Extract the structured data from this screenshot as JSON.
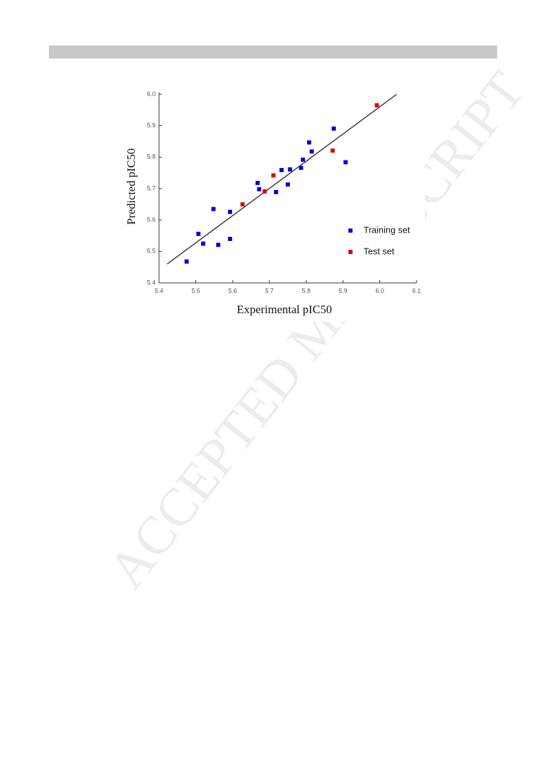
{
  "watermark": "ACCEPTED MANUSCRIPT",
  "chart_data": {
    "type": "scatter",
    "x_label": "Experimental pIC50",
    "y_label": "Predicted pIC50",
    "xlim": [
      5.4,
      6.1
    ],
    "ylim": [
      5.4,
      6.0
    ],
    "xticks": [
      5.4,
      5.5,
      5.6,
      5.7,
      5.8,
      5.9,
      {
        "value": 6,
        "label": "6.0"
      },
      6.1
    ],
    "yticks": [
      5.4,
      5.5,
      5.6,
      5.7,
      5.8,
      5.9,
      {
        "value": 6,
        "label": "6.0"
      }
    ],
    "legend": "right",
    "series": [
      {
        "name": "Training set",
        "color": "#0000dd",
        "x": [
          5.475,
          5.507,
          5.52,
          5.548,
          5.561,
          5.593,
          5.593,
          5.668,
          5.672,
          5.718,
          5.733,
          5.75,
          5.756,
          5.786,
          5.791,
          5.808,
          5.815,
          5.875,
          5.907
        ],
        "y": [
          5.468,
          5.556,
          5.525,
          5.635,
          5.521,
          5.626,
          5.54,
          5.718,
          5.698,
          5.689,
          5.759,
          5.713,
          5.761,
          5.766,
          5.792,
          5.847,
          5.818,
          5.891,
          5.784
        ]
      },
      {
        "name": "Test set",
        "color": "#dd0000",
        "x": [
          5.627,
          5.687,
          5.711,
          5.872,
          5.992
        ],
        "y": [
          5.65,
          5.691,
          5.742,
          5.821,
          5.965
        ]
      }
    ],
    "fit_line": {
      "color": "#444444",
      "x": [
        5.422,
        6.046
      ],
      "y": [
        5.46,
        6.0
      ]
    }
  }
}
